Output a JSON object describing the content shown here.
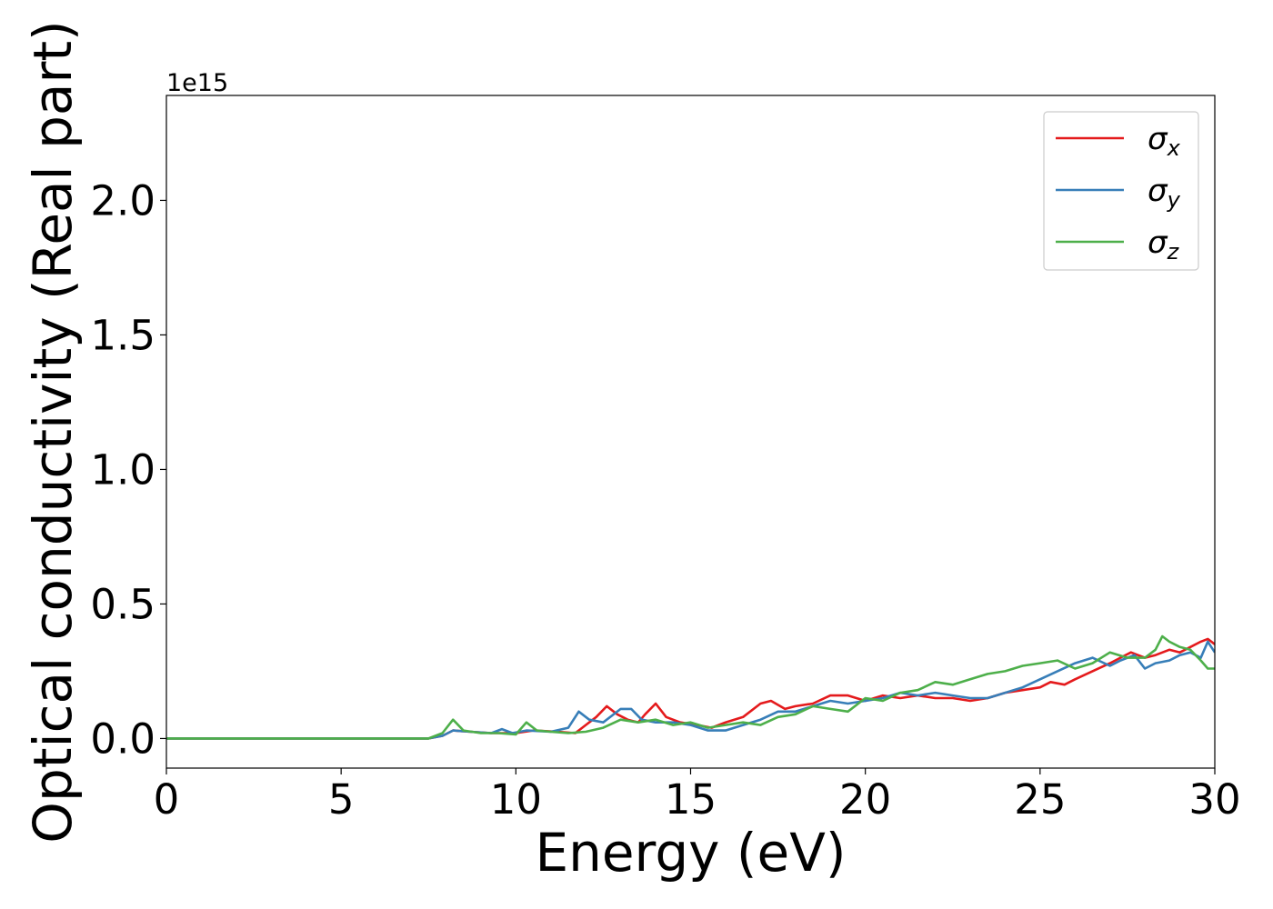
{
  "chart_data": {
    "type": "line",
    "title": "",
    "xlabel": "Energy (eV)",
    "ylabel": "Optical conductivity (Real part)",
    "y_offset_label": "1e15",
    "y_multiplier": 1000000000000000.0,
    "xlim": [
      0,
      30
    ],
    "ylim": [
      -0.11,
      2.39
    ],
    "x_ticks": [
      0,
      5,
      10,
      15,
      20,
      25,
      30
    ],
    "x_tick_labels": [
      "0",
      "5",
      "10",
      "15",
      "20",
      "25",
      "30"
    ],
    "y_ticks": [
      0.0,
      0.5,
      1.0,
      1.5,
      2.0
    ],
    "y_tick_labels": [
      "0.0",
      "0.5",
      "1.0",
      "1.5",
      "2.0"
    ],
    "grid": false,
    "legend_position": "top-right",
    "series": [
      {
        "name": "σx",
        "legend_base": "σ",
        "legend_sub": "x",
        "color": "#e41a1c",
        "x": [
          0,
          7.5,
          7.9,
          8.2,
          8.7,
          9.3,
          10.0,
          10.5,
          11.2,
          11.7,
          12.0,
          12.3,
          12.6,
          12.9,
          13.2,
          13.5,
          13.7,
          14.0,
          14.3,
          14.7,
          15.2,
          15.6,
          16.0,
          16.5,
          17.0,
          17.3,
          17.7,
          18.0,
          18.5,
          19.0,
          19.5,
          20.0,
          20.5,
          21.0,
          21.5,
          22.0,
          22.5,
          23.0,
          23.5,
          24.0,
          24.5,
          25.0,
          25.3,
          25.7,
          26.0,
          26.5,
          27.0,
          27.3,
          27.6,
          28.0,
          28.3,
          28.7,
          29.0,
          29.3,
          29.6,
          29.8,
          30.0
        ],
        "y": [
          0,
          0.0,
          0.01,
          0.03,
          0.025,
          0.02,
          0.02,
          0.03,
          0.025,
          0.02,
          0.05,
          0.08,
          0.12,
          0.09,
          0.07,
          0.06,
          0.09,
          0.13,
          0.08,
          0.06,
          0.05,
          0.04,
          0.06,
          0.08,
          0.13,
          0.14,
          0.11,
          0.12,
          0.13,
          0.16,
          0.16,
          0.14,
          0.16,
          0.15,
          0.16,
          0.15,
          0.15,
          0.14,
          0.15,
          0.17,
          0.18,
          0.19,
          0.21,
          0.2,
          0.22,
          0.25,
          0.28,
          0.3,
          0.32,
          0.3,
          0.31,
          0.33,
          0.32,
          0.34,
          0.36,
          0.37,
          0.35
        ]
      },
      {
        "name": "σy",
        "legend_base": "σ",
        "legend_sub": "y",
        "color": "#377eb8",
        "x": [
          0,
          7.5,
          7.9,
          8.2,
          8.7,
          9.3,
          9.6,
          9.9,
          10.3,
          11.0,
          11.5,
          11.8,
          12.1,
          12.5,
          13.0,
          13.3,
          13.6,
          14.0,
          14.5,
          15.0,
          15.5,
          16.0,
          16.5,
          17.0,
          17.5,
          18.0,
          18.5,
          19.0,
          19.5,
          20.0,
          20.5,
          21.0,
          21.5,
          22.0,
          22.5,
          23.0,
          23.5,
          24.0,
          24.5,
          25.0,
          25.5,
          26.0,
          26.5,
          27.0,
          27.3,
          27.7,
          28.0,
          28.3,
          28.7,
          29.0,
          29.3,
          29.6,
          29.8,
          30.0
        ],
        "y": [
          0,
          0.0,
          0.01,
          0.03,
          0.025,
          0.02,
          0.035,
          0.02,
          0.03,
          0.025,
          0.04,
          0.1,
          0.07,
          0.06,
          0.11,
          0.11,
          0.07,
          0.06,
          0.06,
          0.05,
          0.03,
          0.03,
          0.05,
          0.07,
          0.1,
          0.1,
          0.12,
          0.14,
          0.13,
          0.14,
          0.15,
          0.17,
          0.16,
          0.17,
          0.16,
          0.15,
          0.15,
          0.17,
          0.19,
          0.22,
          0.25,
          0.28,
          0.3,
          0.27,
          0.29,
          0.31,
          0.26,
          0.28,
          0.29,
          0.31,
          0.32,
          0.3,
          0.36,
          0.32
        ]
      },
      {
        "name": "σz",
        "legend_base": "σ",
        "legend_sub": "z",
        "color": "#4daf4a",
        "x": [
          0,
          7.5,
          7.9,
          8.2,
          8.5,
          9.0,
          9.5,
          10.0,
          10.3,
          10.6,
          11.0,
          11.5,
          12.0,
          12.5,
          13.0,
          13.5,
          14.0,
          14.5,
          15.0,
          15.5,
          16.0,
          16.5,
          17.0,
          17.5,
          18.0,
          18.5,
          19.0,
          19.5,
          20.0,
          20.5,
          21.0,
          21.5,
          22.0,
          22.5,
          23.0,
          23.5,
          24.0,
          24.5,
          25.0,
          25.5,
          26.0,
          26.5,
          27.0,
          27.5,
          28.0,
          28.3,
          28.5,
          28.7,
          29.0,
          29.3,
          29.6,
          29.8,
          30.0
        ],
        "y": [
          0,
          0.0,
          0.02,
          0.07,
          0.03,
          0.02,
          0.02,
          0.015,
          0.06,
          0.03,
          0.025,
          0.02,
          0.025,
          0.04,
          0.07,
          0.06,
          0.07,
          0.05,
          0.06,
          0.04,
          0.05,
          0.06,
          0.05,
          0.08,
          0.09,
          0.12,
          0.11,
          0.1,
          0.15,
          0.14,
          0.17,
          0.18,
          0.21,
          0.2,
          0.22,
          0.24,
          0.25,
          0.27,
          0.28,
          0.29,
          0.26,
          0.28,
          0.32,
          0.3,
          0.3,
          0.33,
          0.38,
          0.36,
          0.34,
          0.33,
          0.29,
          0.26,
          0.26
        ]
      }
    ]
  }
}
